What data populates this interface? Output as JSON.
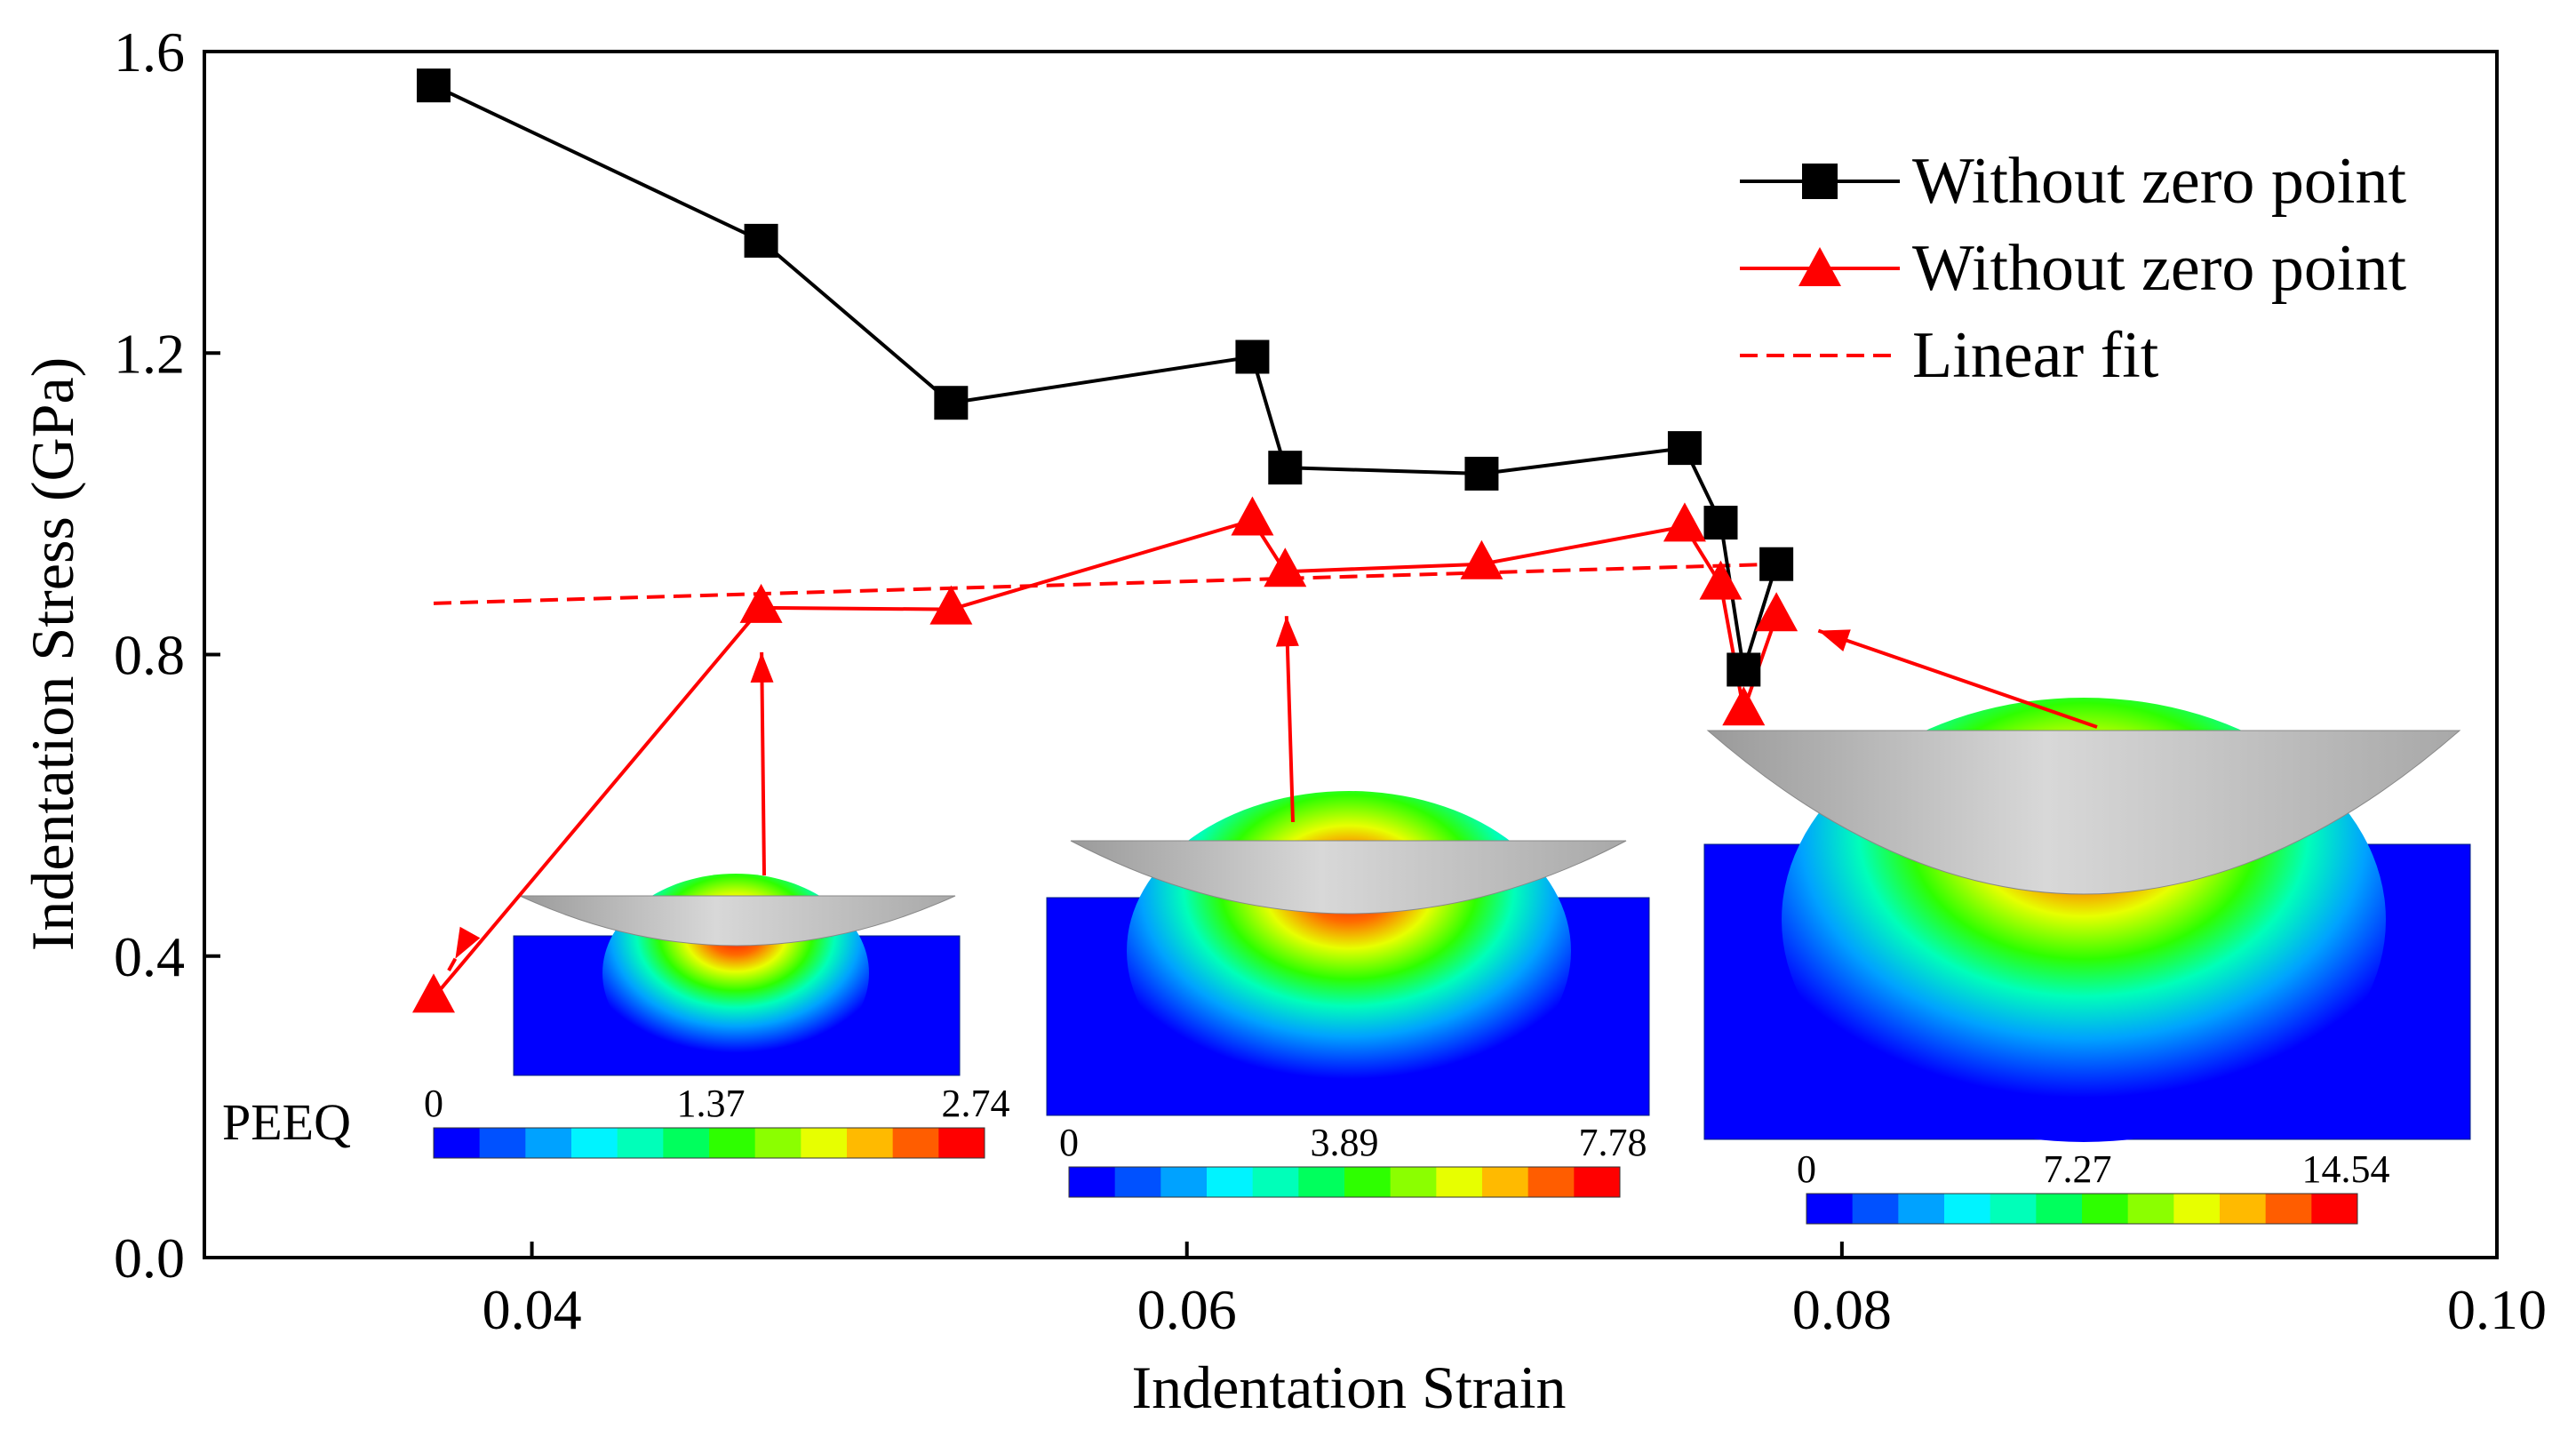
{
  "chart_data": {
    "type": "line",
    "title": "",
    "xlabel": "Indentation Strain",
    "ylabel": "Indentation Stress (GPa)",
    "xlim": [
      0.03,
      0.1
    ],
    "ylim": [
      0.0,
      1.6
    ],
    "xticks": [
      0.04,
      0.06,
      0.08,
      0.1
    ],
    "xtick_labels": [
      "0.04",
      "0.06",
      "0.08",
      "0.10"
    ],
    "yticks": [
      0.0,
      0.4,
      0.8,
      1.2,
      1.6
    ],
    "ytick_labels": [
      "0.0",
      "0.4",
      "0.8",
      "1.2",
      "1.6"
    ],
    "legend_position": "top-right",
    "series": [
      {
        "name": "Without zero point",
        "color": "#000000",
        "marker": "square",
        "x": [
          0.037,
          0.047,
          0.0528,
          0.062,
          0.063,
          0.069,
          0.0752,
          0.0763,
          0.077,
          0.078
        ],
        "y": [
          1.555,
          1.349,
          1.134,
          1.195,
          1.048,
          1.04,
          1.074,
          0.975,
          0.78,
          0.92
        ]
      },
      {
        "name": "Without zero point",
        "color": "#ff0000",
        "marker": "triangle",
        "x": [
          0.037,
          0.047,
          0.0528,
          0.062,
          0.063,
          0.069,
          0.0752,
          0.0763,
          0.077,
          0.078
        ],
        "y": [
          0.345,
          0.862,
          0.86,
          0.978,
          0.91,
          0.92,
          0.97,
          0.893,
          0.726,
          0.851
        ]
      },
      {
        "name": "Linear fit",
        "color": "#ff0000",
        "style": "dashed",
        "x": [
          0.037,
          0.078
        ],
        "y": [
          0.868,
          0.92
        ]
      }
    ],
    "annotations": [
      {
        "type": "contour-inset",
        "field_label": "PEEQ",
        "colorbar_ticks": [
          "0",
          "1.37",
          "2.74"
        ],
        "arrow_targets": [
          [
            0.037,
            0.345
          ],
          [
            0.047,
            0.862
          ]
        ]
      },
      {
        "type": "contour-inset",
        "field_label": "",
        "colorbar_ticks": [
          "0",
          "3.89",
          "7.78"
        ],
        "arrow_targets": [
          [
            0.063,
            0.91
          ]
        ]
      },
      {
        "type": "contour-inset",
        "field_label": "",
        "colorbar_ticks": [
          "0",
          "7.27",
          "14.54"
        ],
        "arrow_targets": [
          [
            0.078,
            0.851
          ]
        ]
      }
    ],
    "colormap": [
      "#0000ff",
      "#0051ff",
      "#00a2ff",
      "#00f3ff",
      "#00ffb9",
      "#00ff5d",
      "#2eff00",
      "#8bff00",
      "#e7ff00",
      "#ffba00",
      "#ff5d00",
      "#ff0000"
    ]
  }
}
